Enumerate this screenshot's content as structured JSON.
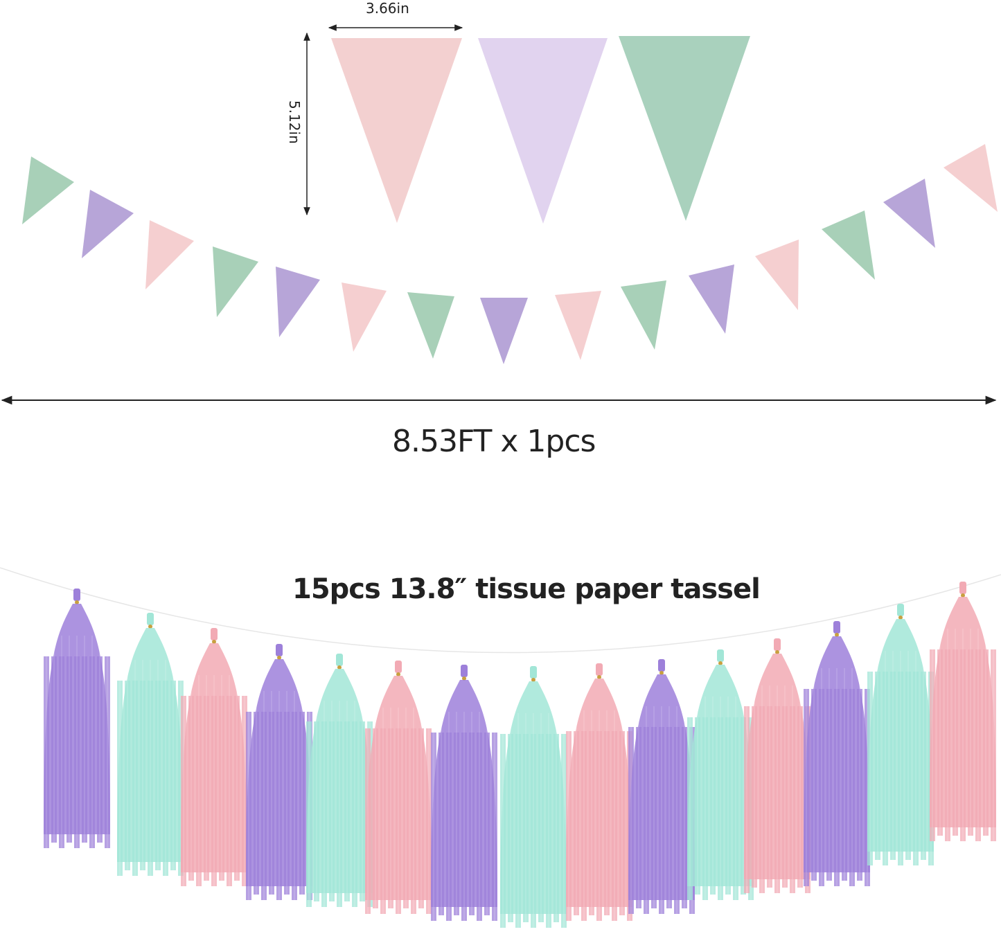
{
  "banner": {
    "width_label": "3.66in",
    "height_label": "5.12in",
    "length_label": "8.53FT x 1pcs",
    "large_pennant_colors": [
      "#f3d0d0",
      "#e1d3ef",
      "#a9d1bd"
    ],
    "small_pennant_colors": [
      "#a8d0b8",
      "#b7a5d8",
      "#f5cfd0"
    ],
    "small_pennant_count": 15
  },
  "tassels": {
    "label": "15pcs 13.8″ tissue paper  tassel",
    "count": 15,
    "colors": [
      "#9d80da",
      "#a2e6d7",
      "#f2aab4"
    ],
    "knot_color": "#c8a040"
  },
  "colors": {
    "text": "#222222",
    "arrow": "#222222"
  }
}
